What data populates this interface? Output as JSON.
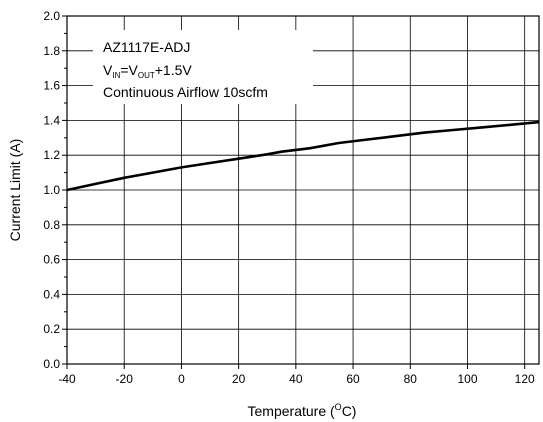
{
  "chart_data": {
    "type": "line",
    "title": "",
    "xlabel": "Temperature (",
    "xlabel_sup": "O",
    "xlabel_suffix": "C)",
    "ylabel": "Current Limit (A)",
    "xlim": [
      -40,
      125
    ],
    "ylim": [
      0.0,
      2.0
    ],
    "x_ticks": [
      -40,
      -20,
      0,
      20,
      40,
      60,
      80,
      100,
      120
    ],
    "x_tick_labels": [
      "-40",
      "-20",
      "0",
      "20",
      "40",
      "60",
      "80",
      "100",
      "120"
    ],
    "y_ticks": [
      0.0,
      0.2,
      0.4,
      0.6,
      0.8,
      1.0,
      1.2,
      1.4,
      1.6,
      1.8,
      2.0
    ],
    "y_tick_labels": [
      "0.0",
      "0.2",
      "0.4",
      "0.6",
      "0.8",
      "1.0",
      "1.2",
      "1.4",
      "1.6",
      "1.8",
      "2.0"
    ],
    "grid": true,
    "legend_position": "top-left",
    "annotation": {
      "line1": "AZ1117E-ADJ",
      "line2_v": "V",
      "line2_sub1": "IN",
      "line2_eq": "=V",
      "line2_sub2": "OUT",
      "line2_rest": "+1.5V",
      "line3": "Continuous Airflow 10scfm"
    },
    "series": [
      {
        "color": "#000000",
        "x": [
          -40,
          -30,
          -20,
          -10,
          0,
          10,
          20,
          30,
          35,
          45,
          55,
          65,
          75,
          85,
          95,
          105,
          115,
          125
        ],
        "y": [
          1.0,
          1.035,
          1.07,
          1.1,
          1.13,
          1.155,
          1.18,
          1.205,
          1.22,
          1.24,
          1.27,
          1.29,
          1.31,
          1.33,
          1.345,
          1.36,
          1.375,
          1.39
        ]
      }
    ]
  }
}
